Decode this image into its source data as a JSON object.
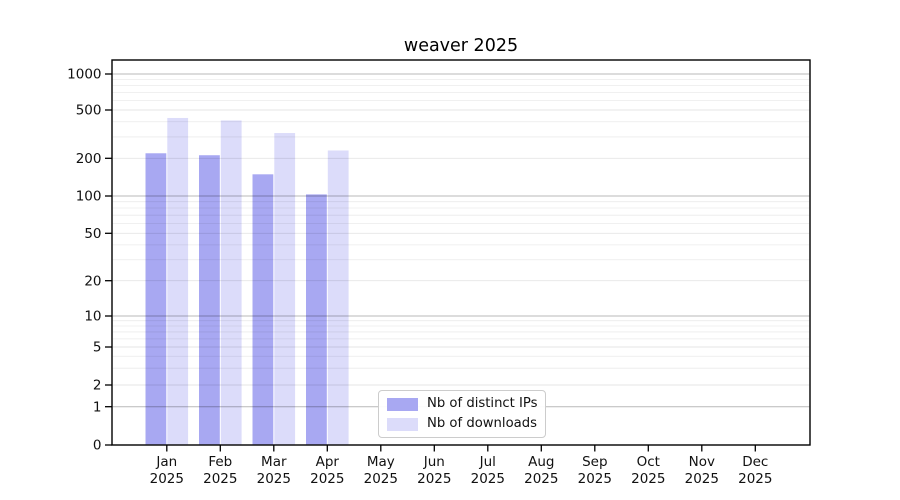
{
  "chart_data": {
    "type": "bar",
    "title": "weaver 2025",
    "categories": [
      "Jan 2025",
      "Feb 2025",
      "Mar 2025",
      "Apr 2025",
      "May 2025",
      "Jun 2025",
      "Jul 2025",
      "Aug 2025",
      "Sep 2025",
      "Oct 2025",
      "Nov 2025",
      "Dec 2025"
    ],
    "series": [
      {
        "name": "Nb of distinct IPs",
        "color": "#a8a8f2",
        "values": [
          220,
          212,
          149,
          103,
          0,
          0,
          0,
          0,
          0,
          0,
          0,
          0
        ]
      },
      {
        "name": "Nb of downloads",
        "color": "#dcdcfa",
        "values": [
          430,
          410,
          323,
          232,
          0,
          0,
          0,
          0,
          0,
          0,
          0,
          0
        ]
      }
    ],
    "yaxis": {
      "ticks": [
        0,
        1,
        2,
        5,
        10,
        20,
        50,
        100,
        200,
        500,
        1000
      ],
      "range": [
        0,
        1300
      ],
      "scale": "log (1-2-5 ticks) with linear segment below 1"
    },
    "xlabel": "",
    "ylabel": "",
    "grid": true,
    "legend_position": "lower center inside plot"
  }
}
